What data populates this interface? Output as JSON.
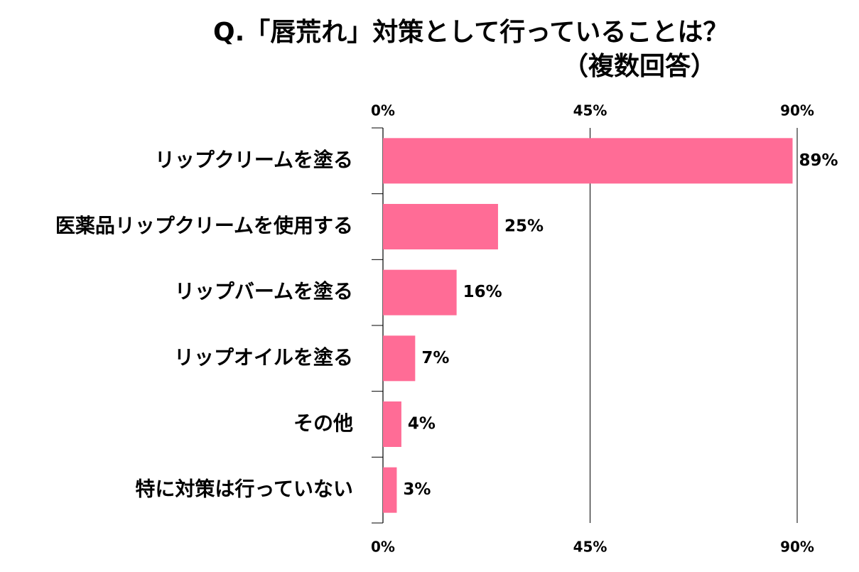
{
  "chart_data": {
    "type": "bar",
    "orientation": "horizontal",
    "title": "Q.「唇荒れ」対策として行っていることは？",
    "subtitle": "（複数回答）",
    "categories": [
      "リップクリームを塗る",
      "医薬品リップクリームを使用する",
      "リップバームを塗る",
      "リップオイルを塗る",
      "その他",
      "特に対策は行っていない"
    ],
    "values": [
      89,
      25,
      16,
      7,
      4,
      3
    ],
    "value_labels": [
      "89%",
      "25%",
      "16%",
      "7%",
      "4%",
      "3%"
    ],
    "xlim": [
      0,
      90
    ],
    "x_ticks": [
      0,
      45,
      90
    ],
    "x_tick_labels": [
      "0%",
      "45%",
      "90%"
    ],
    "x_axis_position": "top and bottom",
    "grid": true,
    "legend": "none",
    "bar_color": "#ff6c96",
    "text_color": "#000000",
    "grid_color": "#000000"
  }
}
